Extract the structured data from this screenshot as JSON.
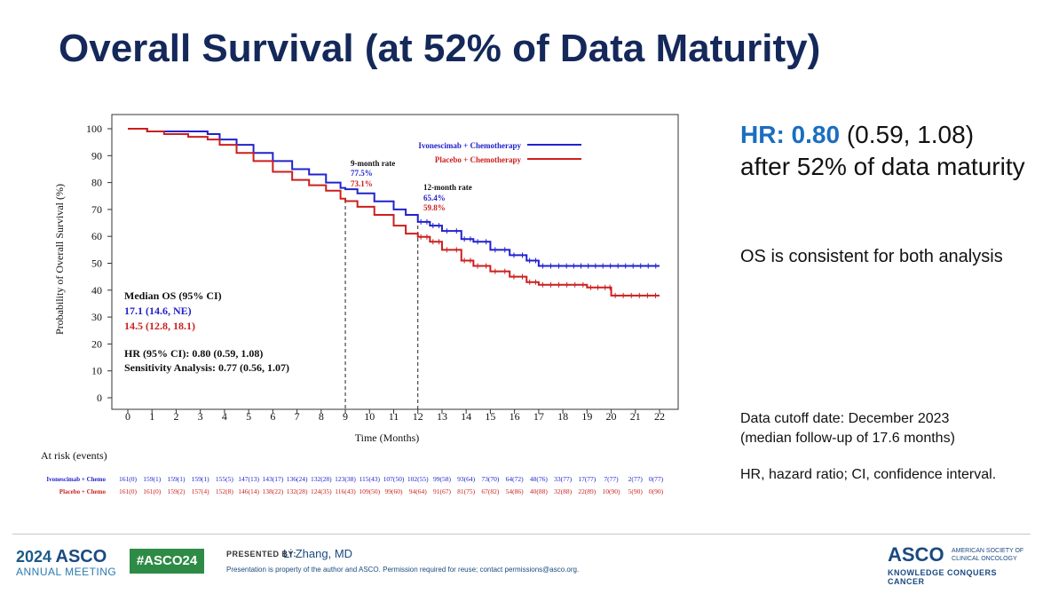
{
  "slide": {
    "title": "Overall Survival (at 52% of Data Maturity)"
  },
  "right_panel": {
    "hr_label": "HR:",
    "hr_value": "0.80",
    "hr_ci": " (0.59, 1.08)",
    "hr_text": "after 52% of data maturity",
    "os_note": "OS is consistent for both analysis",
    "cutoff_line1": "Data cutoff date: December 2023",
    "cutoff_line2": "(median follow-up of 17.6 months)",
    "abbreviations": "HR, hazard ratio; CI, confidence interval."
  },
  "footer": {
    "year": "2024",
    "asco": "ASCO",
    "meeting": "ANNUAL MEETING",
    "hashtag": "#ASCO24",
    "presented_by": "PRESENTED BY:",
    "presenter": "Li Zhang, MD",
    "permission": "Presentation is property of the author and ASCO. Permission required for reuse; contact permissions@asco.org.",
    "brand": "ASCO",
    "society_line1": "AMERICAN SOCIETY OF",
    "society_line2": "CLINICAL ONCOLOGY",
    "tagline": "KNOWLEDGE CONQUERS CANCER"
  },
  "colors": {
    "blue_series": "#2222cc",
    "red_series": "#cc1f1f",
    "title": "#14285a",
    "accent": "#1a6ec0"
  },
  "chart_data": {
    "type": "line",
    "xlabel": "Time (Months)",
    "ylabel": "Probability of Overall Survival (%)",
    "xlim": [
      0,
      22
    ],
    "ylim": [
      0,
      100
    ],
    "x_ticks": [
      0,
      1,
      2,
      3,
      4,
      5,
      6,
      7,
      8,
      9,
      10,
      11,
      12,
      13,
      14,
      15,
      16,
      17,
      18,
      19,
      20,
      21,
      22
    ],
    "y_ticks": [
      0,
      10,
      20,
      30,
      40,
      50,
      60,
      70,
      80,
      90,
      100
    ],
    "grid": false,
    "legend_position": "top-right",
    "series": [
      {
        "name": "Ivonescimab + Chemotherapy",
        "color": "#2222cc",
        "x": [
          0,
          0.8,
          1.5,
          2.5,
          3.3,
          3.8,
          4.5,
          5.2,
          6.0,
          6.8,
          7.5,
          8.2,
          8.8,
          9.0,
          9.5,
          10.2,
          11.0,
          11.5,
          12.0,
          12.5,
          13.0,
          13.8,
          14.3,
          15.0,
          15.8,
          16.5,
          17.0,
          18.0,
          19.5,
          22.0
        ],
        "y": [
          100,
          99,
          99,
          99,
          98,
          96,
          94,
          91,
          88,
          85,
          83,
          80,
          78,
          77.5,
          76,
          73,
          70,
          68,
          65.4,
          64,
          62,
          59,
          58,
          55,
          53,
          51,
          49,
          49,
          49,
          49
        ]
      },
      {
        "name": "Placebo + Chemotherapy",
        "color": "#cc1f1f",
        "x": [
          0,
          0.8,
          1.5,
          2.5,
          3.3,
          3.8,
          4.5,
          5.2,
          6.0,
          6.8,
          7.5,
          8.2,
          8.8,
          9.0,
          9.5,
          10.2,
          11.0,
          11.5,
          12.0,
          12.5,
          13.0,
          13.8,
          14.3,
          15.0,
          15.8,
          16.5,
          17.0,
          18.0,
          19.0,
          19.9,
          20.0,
          22.0
        ],
        "y": [
          100,
          99,
          98,
          97,
          96,
          94,
          91,
          88,
          84,
          81,
          79,
          77,
          74,
          73.1,
          71,
          68,
          64,
          61,
          59.8,
          58,
          55,
          51,
          49,
          47,
          45,
          43,
          42,
          42,
          41,
          41,
          38,
          38
        ]
      }
    ],
    "annotations": {
      "nine_month": {
        "x": 9,
        "label": "9-month rate",
        "blue_value": "77.5%",
        "red_value": "73.1%"
      },
      "twelve_month": {
        "x": 12,
        "label": "12-month rate",
        "blue_value": "65.4%",
        "red_value": "59.8%"
      },
      "median_title": "Median OS (95% CI)",
      "median_blue": "17.1 (14.6, NE)",
      "median_red": "14.5 (12.8, 18.1)",
      "hr_text": "HR (95% CI): 0.80 (0.59, 1.08)",
      "sensitivity_text": "Sensitivity Analysis: 0.77 (0.56, 1.07)"
    },
    "at_risk": {
      "title": "At risk (events)",
      "rows": [
        {
          "label": "Ivonescimab + Chemo",
          "color": "#2222cc",
          "values": [
            "161(0)",
            "159(1)",
            "159(1)",
            "159(1)",
            "155(5)",
            "147(13)",
            "143(17)",
            "136(24)",
            "132(28)",
            "123(38)",
            "115(43)",
            "107(50)",
            "102(55)",
            "99(58)",
            "93(64)",
            "73(70)",
            "64(72)",
            "48(76)",
            "33(77)",
            "17(77)",
            "7(77)",
            "2(77)",
            "0(77)"
          ]
        },
        {
          "label": "Placebo + Chemo",
          "color": "#cc1f1f",
          "values": [
            "161(0)",
            "161(0)",
            "159(2)",
            "157(4)",
            "152(8)",
            "146(14)",
            "138(22)",
            "132(28)",
            "124(35)",
            "116(43)",
            "109(50)",
            "99(60)",
            "94(64)",
            "91(67)",
            "81(75)",
            "67(82)",
            "54(86)",
            "40(88)",
            "32(88)",
            "22(89)",
            "10(90)",
            "5(90)",
            "0(90)"
          ]
        }
      ]
    }
  }
}
